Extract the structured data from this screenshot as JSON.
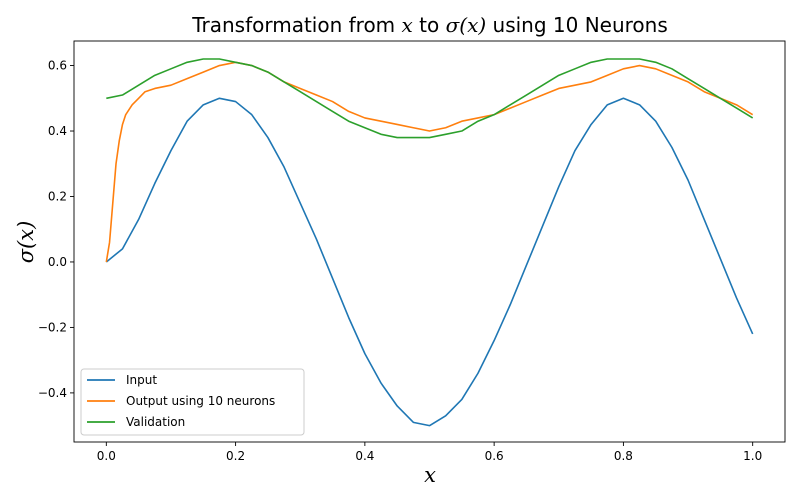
{
  "chart_data": {
    "type": "line",
    "title": "Transformation from x to σ(x) using 10 Neurons",
    "title_parts": {
      "prefix": "Transformation from ",
      "x_var": "x",
      "middle": " to ",
      "sigma_var": "σ(x)",
      "suffix": " using 10 Neurons"
    },
    "xlabel": "x",
    "ylabel": "σ(x)",
    "xlim": [
      -0.05,
      1.05
    ],
    "ylim": [
      -0.55,
      0.675
    ],
    "xticks": [
      0.0,
      0.2,
      0.4,
      0.6,
      0.8,
      1.0
    ],
    "xtick_labels": [
      "0.0",
      "0.2",
      "0.4",
      "0.6",
      "0.8",
      "1.0"
    ],
    "yticks": [
      -0.4,
      -0.2,
      0.0,
      0.2,
      0.4,
      0.6
    ],
    "ytick_labels": [
      "−0.4",
      "−0.2",
      "0.0",
      "0.2",
      "0.4",
      "0.6"
    ],
    "grid": false,
    "legend_position": "lower-left",
    "series": [
      {
        "name": "Input",
        "color": "#1f77b4",
        "x": [
          0.0,
          0.025,
          0.05,
          0.075,
          0.1,
          0.125,
          0.15,
          0.175,
          0.2,
          0.225,
          0.25,
          0.275,
          0.3,
          0.325,
          0.35,
          0.375,
          0.4,
          0.425,
          0.45,
          0.475,
          0.5,
          0.525,
          0.55,
          0.575,
          0.6,
          0.625,
          0.65,
          0.675,
          0.7,
          0.725,
          0.75,
          0.775,
          0.8,
          0.825,
          0.85,
          0.875,
          0.9,
          0.925,
          0.95,
          0.975,
          1.0
        ],
        "y": [
          0.0,
          0.04,
          0.13,
          0.24,
          0.34,
          0.43,
          0.48,
          0.5,
          0.49,
          0.45,
          0.38,
          0.29,
          0.18,
          0.07,
          -0.05,
          -0.17,
          -0.28,
          -0.37,
          -0.44,
          -0.49,
          -0.5,
          -0.47,
          -0.42,
          -0.34,
          -0.24,
          -0.13,
          -0.01,
          0.11,
          0.23,
          0.34,
          0.42,
          0.48,
          0.5,
          0.48,
          0.43,
          0.35,
          0.25,
          0.13,
          0.01,
          -0.11,
          -0.22
        ]
      },
      {
        "name": "Output using 10 neurons",
        "color": "#ff7f0e",
        "x": [
          0.0,
          0.005,
          0.01,
          0.015,
          0.02,
          0.025,
          0.03,
          0.04,
          0.05,
          0.06,
          0.075,
          0.1,
          0.125,
          0.15,
          0.175,
          0.2,
          0.225,
          0.25,
          0.275,
          0.3,
          0.325,
          0.35,
          0.375,
          0.4,
          0.425,
          0.45,
          0.475,
          0.5,
          0.525,
          0.55,
          0.575,
          0.6,
          0.625,
          0.65,
          0.675,
          0.7,
          0.725,
          0.75,
          0.775,
          0.8,
          0.825,
          0.85,
          0.875,
          0.9,
          0.925,
          0.95,
          0.975,
          1.0
        ],
        "y": [
          0.0,
          0.06,
          0.18,
          0.3,
          0.37,
          0.42,
          0.45,
          0.48,
          0.5,
          0.52,
          0.53,
          0.54,
          0.56,
          0.58,
          0.6,
          0.61,
          0.6,
          0.58,
          0.55,
          0.53,
          0.51,
          0.49,
          0.46,
          0.44,
          0.43,
          0.42,
          0.41,
          0.4,
          0.41,
          0.43,
          0.44,
          0.45,
          0.47,
          0.49,
          0.51,
          0.53,
          0.54,
          0.55,
          0.57,
          0.59,
          0.6,
          0.59,
          0.57,
          0.55,
          0.52,
          0.5,
          0.48,
          0.45
        ]
      },
      {
        "name": "Validation",
        "color": "#2ca02c",
        "x": [
          0.0,
          0.025,
          0.05,
          0.075,
          0.1,
          0.125,
          0.15,
          0.175,
          0.2,
          0.225,
          0.25,
          0.275,
          0.3,
          0.325,
          0.35,
          0.375,
          0.4,
          0.425,
          0.45,
          0.475,
          0.5,
          0.525,
          0.55,
          0.575,
          0.6,
          0.625,
          0.65,
          0.675,
          0.7,
          0.725,
          0.75,
          0.775,
          0.8,
          0.825,
          0.85,
          0.875,
          0.9,
          0.925,
          0.95,
          0.975,
          1.0
        ],
        "y": [
          0.5,
          0.51,
          0.54,
          0.57,
          0.59,
          0.61,
          0.62,
          0.62,
          0.61,
          0.6,
          0.58,
          0.55,
          0.52,
          0.49,
          0.46,
          0.43,
          0.41,
          0.39,
          0.38,
          0.38,
          0.38,
          0.39,
          0.4,
          0.43,
          0.45,
          0.48,
          0.51,
          0.54,
          0.57,
          0.59,
          0.61,
          0.62,
          0.62,
          0.62,
          0.61,
          0.59,
          0.56,
          0.53,
          0.5,
          0.47,
          0.44
        ]
      }
    ]
  }
}
